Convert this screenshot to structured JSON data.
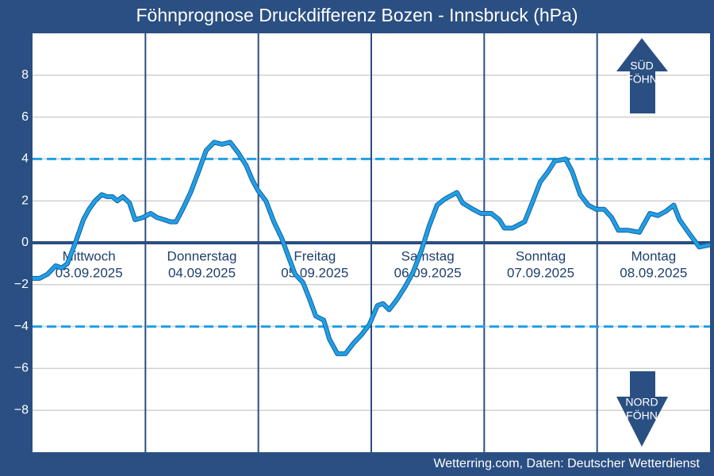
{
  "chart_data": {
    "type": "line",
    "title": "Föhnprognose Druckdifferenz Bozen - Innsbruck (hPa)",
    "source": "Wetterring.com, Daten: Deutscher Wetterdienst",
    "days": [
      {
        "name": "Mittwoch",
        "date": "03.09.2025"
      },
      {
        "name": "Donnerstag",
        "date": "04.09.2025"
      },
      {
        "name": "Freitag",
        "date": "05.09.2025"
      },
      {
        "name": "Samstag",
        "date": "06.09.2025"
      },
      {
        "name": "Sonntag",
        "date": "07.09.2025"
      },
      {
        "name": "Montag",
        "date": "08.09.2025"
      }
    ],
    "xlim": [
      0,
      144
    ],
    "x": [
      0,
      1.5,
      3.2,
      4.9,
      6.2,
      7.4,
      9.1,
      10.8,
      12,
      13.3,
      14.7,
      15.9,
      17,
      18,
      19.2,
      20.6,
      21.8,
      23.4,
      25.1,
      26.5,
      28,
      29.3,
      30.5,
      31.9,
      33.6,
      35.3,
      36.9,
      38.6,
      40.3,
      42,
      43.7,
      45.4,
      46.7,
      47.9,
      49.6,
      51.3,
      53,
      54.3,
      55.8,
      57.5,
      58.9,
      60.2,
      61.9,
      63.1,
      64.8,
      66.5,
      68.2,
      69.9,
      71.6,
      73.3,
      74.5,
      75.8,
      77.5,
      79.2,
      80.9,
      82.6,
      84.3,
      86,
      87.7,
      90.2,
      91.4,
      93.6,
      95.3,
      97.5,
      99.2,
      100.3,
      102,
      104.6,
      106.2,
      107.9,
      109.6,
      111,
      113.3,
      114.7,
      116.4,
      118.1,
      119.8,
      121.5,
      123.1,
      124.5,
      126.5,
      129,
      131.2,
      132.9,
      134.6,
      136.3,
      137.5,
      139.7,
      141.7,
      144
    ],
    "series": [
      {
        "name": "Druckdifferenz",
        "color": "#1ea0e8",
        "values": [
          -1.7,
          -1.7,
          -1.5,
          -1.1,
          -1.2,
          -1.0,
          0,
          1.1,
          1.6,
          2.0,
          2.3,
          2.2,
          2.2,
          2.0,
          2.2,
          1.9,
          1.1,
          1.2,
          1.4,
          1.2,
          1.1,
          1.0,
          1.0,
          1.6,
          2.4,
          3.4,
          4.4,
          4.8,
          4.7,
          4.8,
          4.3,
          3.7,
          3.0,
          2.5,
          2.0,
          1.0,
          0.2,
          -0.6,
          -1.5,
          -1.9,
          -2.7,
          -3.5,
          -3.7,
          -4.6,
          -5.3,
          -5.3,
          -4.8,
          -4.4,
          -3.9,
          -3.0,
          -2.9,
          -3.2,
          -2.7,
          -2.1,
          -1.4,
          -0.4,
          0.8,
          1.8,
          2.1,
          2.4,
          1.9,
          1.6,
          1.4,
          1.4,
          1.1,
          0.7,
          0.7,
          1.0,
          1.9,
          2.9,
          3.4,
          3.9,
          4.0,
          3.4,
          2.3,
          1.8,
          1.6,
          1.6,
          1.2,
          0.6,
          0.6,
          0.5,
          1.4,
          1.3,
          1.5,
          1.8,
          1.1,
          0.4,
          -0.2,
          -0.1
        ]
      }
    ],
    "ylim": [
      -10,
      10
    ],
    "yticks": [
      {
        "value": -8,
        "label": "−8"
      },
      {
        "value": -6,
        "label": "−6"
      },
      {
        "value": -4,
        "label": "−4"
      },
      {
        "value": -2,
        "label": "−2"
      },
      0,
      2,
      4,
      6,
      8
    ],
    "grid": true,
    "threshold_lines": [
      4,
      -4
    ],
    "zero_line": 0,
    "annotations": {
      "south": [
        "SÜD",
        "FÖHN"
      ],
      "north": [
        "NORD",
        "FÖHN"
      ]
    }
  }
}
